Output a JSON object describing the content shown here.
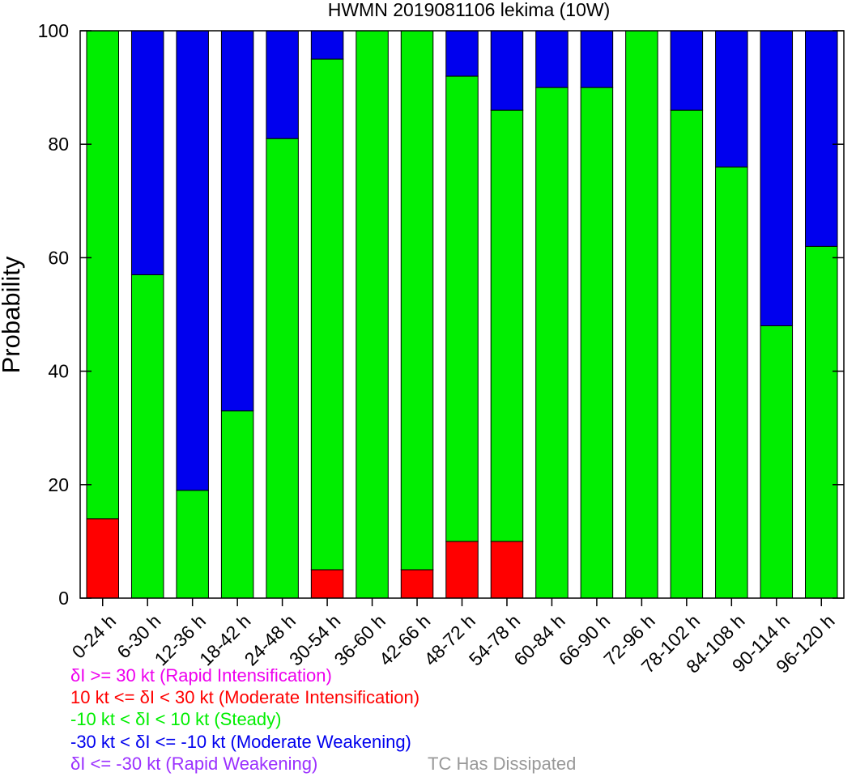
{
  "chart_data": {
    "type": "bar",
    "stacked": true,
    "title": "HWMN 2019081106 lekima (10W)",
    "xlabel": "",
    "ylabel": "Probability",
    "ylim": [
      0,
      100
    ],
    "yticks": [
      0,
      20,
      40,
      60,
      80,
      100
    ],
    "grid": false,
    "categories": [
      "0-24 h",
      "6-30 h",
      "12-36 h",
      "18-42 h",
      "24-48 h",
      "30-54 h",
      "36-60 h",
      "42-66 h",
      "48-72 h",
      "54-78 h",
      "60-84 h",
      "66-90 h",
      "72-96 h",
      "78-102 h",
      "84-108 h",
      "90-114 h",
      "96-120 h"
    ],
    "series": [
      {
        "name": "Moderate Intensification",
        "color": "#ff0000",
        "values": [
          14,
          0,
          0,
          0,
          0,
          5,
          0,
          5,
          10,
          10,
          0,
          0,
          0,
          0,
          0,
          0,
          0
        ]
      },
      {
        "name": "Steady",
        "color": "#00ee00",
        "values": [
          86,
          57,
          19,
          33,
          81,
          90,
          100,
          95,
          82,
          76,
          90,
          90,
          100,
          86,
          76,
          48,
          62
        ]
      },
      {
        "name": "Moderate Weakening",
        "color": "#0000ee",
        "values": [
          0,
          43,
          81,
          67,
          19,
          5,
          0,
          0,
          8,
          14,
          10,
          10,
          0,
          14,
          24,
          52,
          38
        ]
      }
    ],
    "legend": [
      {
        "text": "δI >= 30 kt (Rapid Intensification)",
        "color": "#ee00ee"
      },
      {
        "text": "10 kt <= δI < 30 kt (Moderate Intensification)",
        "color": "#ff0000"
      },
      {
        "text": "-10 kt < δI < 10 kt (Steady)",
        "color": "#00ee00"
      },
      {
        "text": "-30 kt < δI <= -10 kt (Moderate Weakening)",
        "color": "#0000ee"
      },
      {
        "text": "δI <= -30 kt (Rapid Weakening)",
        "color": "#9b30ff"
      }
    ],
    "legend_position": "bottom-left",
    "dissipated_label": {
      "text": "TC Has Dissipated",
      "color": "#999999"
    }
  }
}
